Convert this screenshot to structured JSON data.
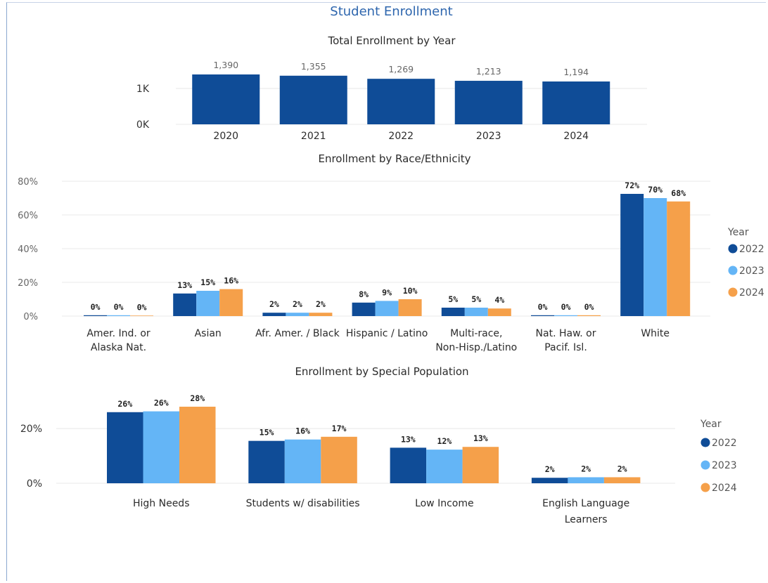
{
  "page_title": "Student Enrollment",
  "colors": {
    "y2022": "#0f4c97",
    "y2023": "#64b5f6",
    "y2024": "#f5a04a"
  },
  "chart_data": [
    {
      "type": "bar",
      "title": "Total Enrollment by Year",
      "categories": [
        "2020",
        "2021",
        "2022",
        "2023",
        "2024"
      ],
      "values": [
        1390,
        1355,
        1269,
        1213,
        1194
      ],
      "value_labels": [
        "1,390",
        "1,355",
        "1,269",
        "1,213",
        "1,194"
      ],
      "y_ticks": [
        {
          "value": 0,
          "label": "0K"
        },
        {
          "value": 1000,
          "label": "1K"
        }
      ],
      "ylim": [
        0,
        1390
      ],
      "grid": true
    },
    {
      "type": "bar",
      "title": "Enrollment by Race/Ethnicity",
      "categories": [
        [
          "Amer. Ind. or",
          "Alaska Nat."
        ],
        [
          "Asian"
        ],
        [
          "Afr. Amer. / Black"
        ],
        [
          "Hispanic / Latino"
        ],
        [
          "Multi-race,",
          "Non-Hisp./Latino"
        ],
        [
          "Nat. Haw. or",
          "Pacif. Isl."
        ],
        [
          "White"
        ]
      ],
      "series": [
        {
          "name": "2022",
          "values": [
            0.5,
            13.4,
            2,
            8,
            5,
            0.5,
            72.5
          ],
          "labels": [
            "0%",
            "13%",
            "2%",
            "8%",
            "5%",
            "0%",
            "72%"
          ]
        },
        {
          "name": "2023",
          "values": [
            0.5,
            15,
            2,
            9,
            5,
            0.5,
            70
          ],
          "labels": [
            "0%",
            "15%",
            "2%",
            "9%",
            "5%",
            "0%",
            "70%"
          ]
        },
        {
          "name": "2024",
          "values": [
            0.3,
            16,
            2,
            10,
            4.5,
            0.5,
            68
          ],
          "labels": [
            "0%",
            "16%",
            "2%",
            "10%",
            "4%",
            "0%",
            "68%"
          ]
        }
      ],
      "y_ticks": [
        {
          "value": 0,
          "label": "0%"
        },
        {
          "value": 20,
          "label": "20%"
        },
        {
          "value": 40,
          "label": "40%"
        },
        {
          "value": 60,
          "label": "60%"
        },
        {
          "value": 80,
          "label": "80%"
        }
      ],
      "ylim": [
        0,
        80
      ],
      "legend": {
        "title": "Year",
        "position": "right"
      },
      "grid": true
    },
    {
      "type": "bar",
      "title": "Enrollment by Special Population",
      "categories": [
        [
          "High Needs"
        ],
        [
          "Students w/ disabilities"
        ],
        [
          "Low Income"
        ],
        [
          "English Language",
          "Learners"
        ]
      ],
      "series": [
        {
          "name": "2022",
          "values": [
            26,
            15.5,
            13,
            2
          ],
          "labels": [
            "26%",
            "15%",
            "13%",
            "2%"
          ]
        },
        {
          "name": "2023",
          "values": [
            26.3,
            16,
            12.3,
            2.2
          ],
          "labels": [
            "26%",
            "16%",
            "12%",
            "2%"
          ]
        },
        {
          "name": "2024",
          "values": [
            28,
            17,
            13.3,
            2.2
          ],
          "labels": [
            "28%",
            "17%",
            "13%",
            "2%"
          ]
        }
      ],
      "y_ticks": [
        {
          "value": 0,
          "label": "0%"
        },
        {
          "value": 20,
          "label": "20%"
        }
      ],
      "ylim": [
        0,
        28
      ],
      "legend": {
        "title": "Year",
        "position": "right"
      },
      "grid": true
    }
  ]
}
